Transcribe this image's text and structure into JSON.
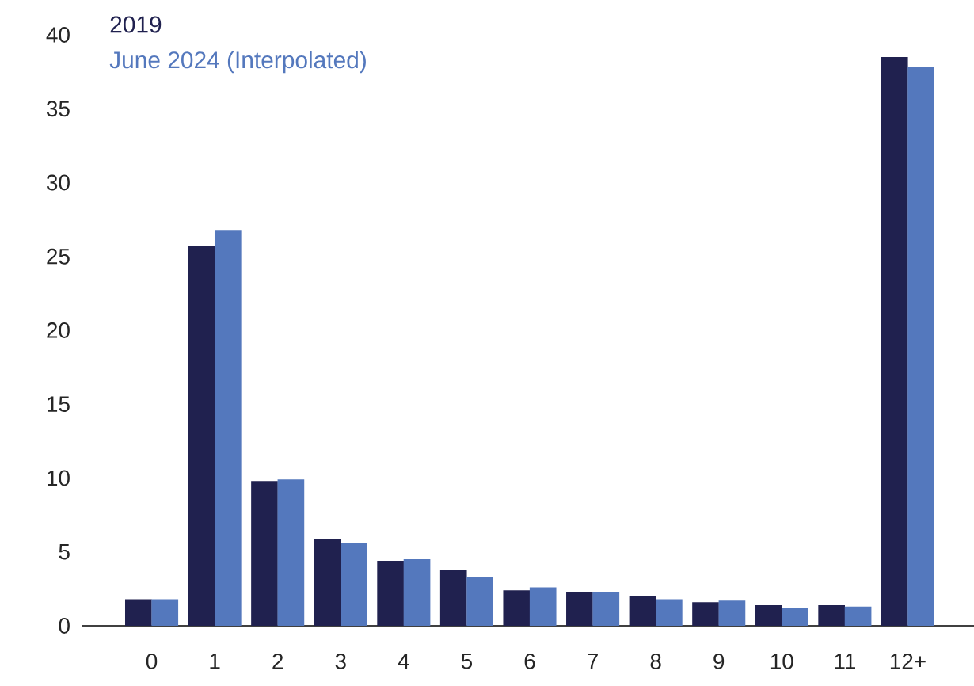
{
  "chart_data": {
    "type": "bar",
    "categories": [
      "0",
      "1",
      "2",
      "3",
      "4",
      "5",
      "6",
      "7",
      "8",
      "9",
      "10",
      "11",
      "12+"
    ],
    "series": [
      {
        "name": "2019",
        "color": "#20214f",
        "values": [
          1.8,
          25.7,
          9.8,
          5.9,
          4.4,
          3.8,
          2.4,
          2.3,
          2.0,
          1.6,
          1.4,
          1.4,
          38.5
        ]
      },
      {
        "name": "June 2024 (Interpolated)",
        "color": "#5478bd",
        "values": [
          1.8,
          26.8,
          9.9,
          5.6,
          4.5,
          3.3,
          2.6,
          2.3,
          1.8,
          1.7,
          1.2,
          1.3,
          37.8
        ]
      }
    ],
    "ylim": [
      0,
      40
    ],
    "yticks": [
      0,
      5,
      10,
      15,
      20,
      25,
      30,
      35,
      40
    ],
    "legend": "top left"
  }
}
